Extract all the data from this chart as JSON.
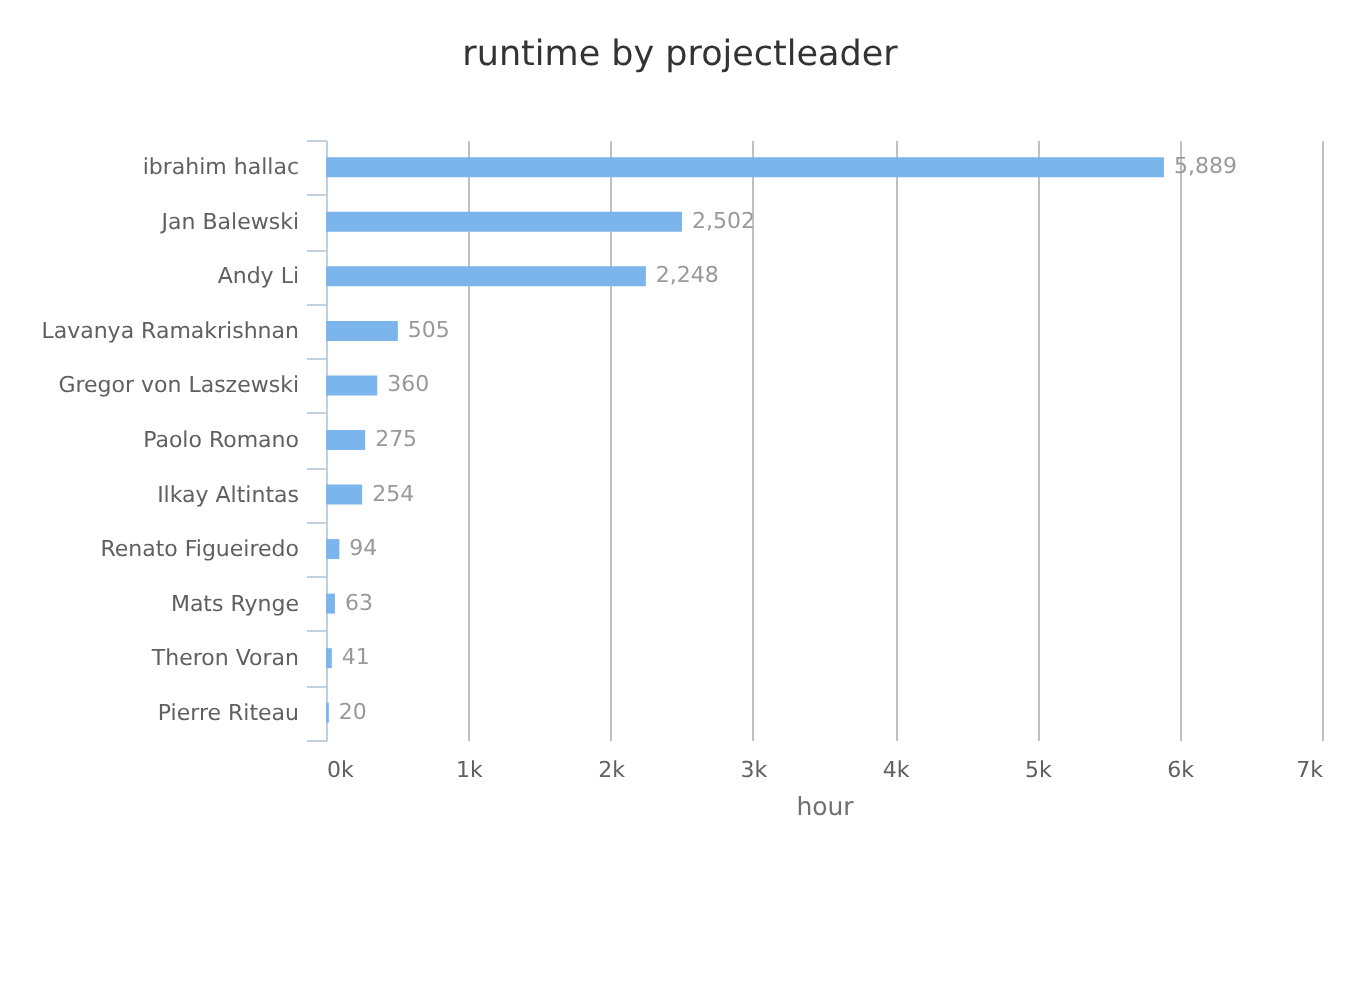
{
  "chart_data": {
    "type": "bar",
    "orientation": "horizontal",
    "title": "runtime by projectleader",
    "xlabel": "hour",
    "categories": [
      "ibrahim hallac",
      "Jan Balewski",
      "Andy Li",
      "Lavanya Ramakrishnan",
      "Gregor von Laszewski",
      "Paolo Romano",
      "Ilkay Altintas",
      "Renato Figueiredo",
      "Mats Rynge",
      "Theron Voran",
      "Pierre Riteau"
    ],
    "values": [
      5889,
      2502,
      2248,
      505,
      360,
      275,
      254,
      94,
      63,
      41,
      20
    ],
    "value_labels": [
      "5,889",
      "2,502",
      "2,248",
      "505",
      "360",
      "275",
      "254",
      "94",
      "63",
      "41",
      "20"
    ],
    "color": "#7cb5ec",
    "xlim": [
      0,
      7000
    ],
    "xticks": [
      {
        "value": 0,
        "label": "0k"
      },
      {
        "value": 1000,
        "label": "1k"
      },
      {
        "value": 2000,
        "label": "2k"
      },
      {
        "value": 3000,
        "label": "3k"
      },
      {
        "value": 4000,
        "label": "4k"
      },
      {
        "value": 5000,
        "label": "5k"
      },
      {
        "value": 6000,
        "label": "6k"
      },
      {
        "value": 7000,
        "label": "7k"
      }
    ],
    "grid": "x"
  }
}
